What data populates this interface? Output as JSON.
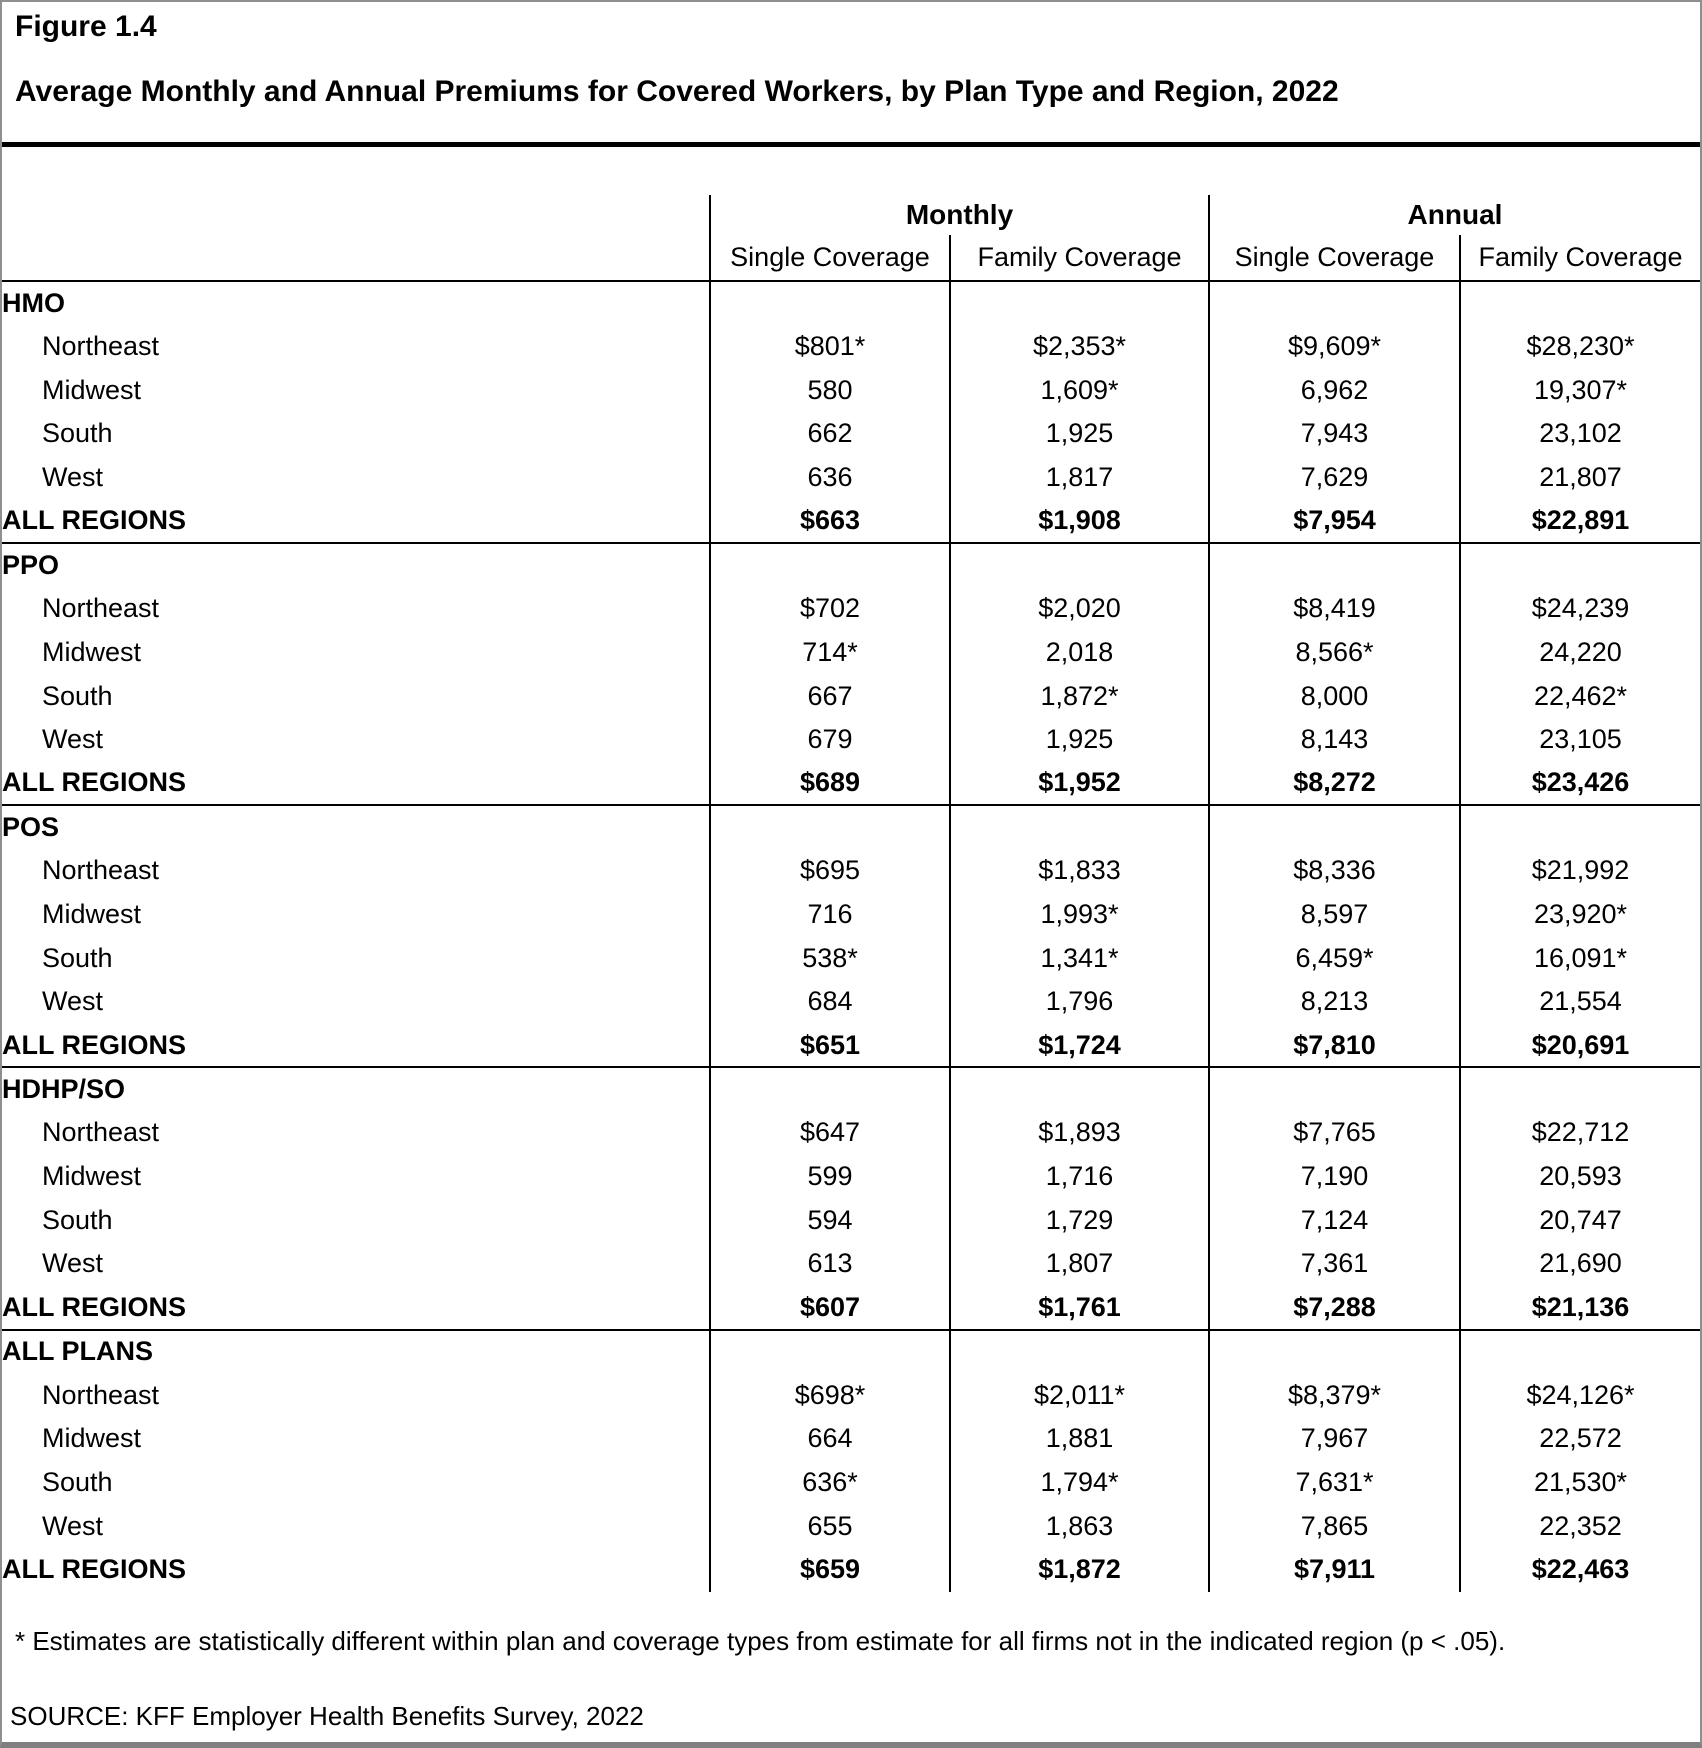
{
  "figure": {
    "label": "Figure 1.4",
    "title": "Average Monthly and Annual Premiums for Covered Workers, by Plan Type and Region, 2022"
  },
  "table": {
    "col_groups": [
      {
        "label": "Monthly"
      },
      {
        "label": "Annual"
      }
    ],
    "sub_headers": [
      "Single Coverage",
      "Family Coverage",
      "Single Coverage",
      "Family Coverage"
    ],
    "sections": [
      {
        "name": "HMO",
        "rows": [
          {
            "label": "Northeast",
            "indent": true,
            "bold": false,
            "values": [
              "$801*",
              "$2,353*",
              "$9,609*",
              "$28,230*"
            ]
          },
          {
            "label": "Midwest",
            "indent": true,
            "bold": false,
            "values": [
              "580",
              "1,609*",
              "6,962",
              "19,307*"
            ]
          },
          {
            "label": "South",
            "indent": true,
            "bold": false,
            "values": [
              "662",
              "1,925",
              "7,943",
              "23,102"
            ]
          },
          {
            "label": "West",
            "indent": true,
            "bold": false,
            "values": [
              "636",
              "1,817",
              "7,629",
              "21,807"
            ]
          },
          {
            "label": "ALL REGIONS",
            "indent": false,
            "bold": true,
            "values": [
              "$663",
              "$1,908",
              "$7,954",
              "$22,891"
            ]
          }
        ]
      },
      {
        "name": "PPO",
        "rows": [
          {
            "label": "Northeast",
            "indent": true,
            "bold": false,
            "values": [
              "$702",
              "$2,020",
              "$8,419",
              "$24,239"
            ]
          },
          {
            "label": "Midwest",
            "indent": true,
            "bold": false,
            "values": [
              "714*",
              "2,018",
              "8,566*",
              "24,220"
            ]
          },
          {
            "label": "South",
            "indent": true,
            "bold": false,
            "values": [
              "667",
              "1,872*",
              "8,000",
              "22,462*"
            ]
          },
          {
            "label": "West",
            "indent": true,
            "bold": false,
            "values": [
              "679",
              "1,925",
              "8,143",
              "23,105"
            ]
          },
          {
            "label": "ALL REGIONS",
            "indent": false,
            "bold": true,
            "values": [
              "$689",
              "$1,952",
              "$8,272",
              "$23,426"
            ]
          }
        ]
      },
      {
        "name": "POS",
        "rows": [
          {
            "label": "Northeast",
            "indent": true,
            "bold": false,
            "values": [
              "$695",
              "$1,833",
              "$8,336",
              "$21,992"
            ]
          },
          {
            "label": "Midwest",
            "indent": true,
            "bold": false,
            "values": [
              "716",
              "1,993*",
              "8,597",
              "23,920*"
            ]
          },
          {
            "label": "South",
            "indent": true,
            "bold": false,
            "values": [
              "538*",
              "1,341*",
              "6,459*",
              "16,091*"
            ]
          },
          {
            "label": "West",
            "indent": true,
            "bold": false,
            "values": [
              "684",
              "1,796",
              "8,213",
              "21,554"
            ]
          },
          {
            "label": "ALL REGIONS",
            "indent": false,
            "bold": true,
            "values": [
              "$651",
              "$1,724",
              "$7,810",
              "$20,691"
            ]
          }
        ]
      },
      {
        "name": "HDHP/SO",
        "rows": [
          {
            "label": "Northeast",
            "indent": true,
            "bold": false,
            "values": [
              "$647",
              "$1,893",
              "$7,765",
              "$22,712"
            ]
          },
          {
            "label": "Midwest",
            "indent": true,
            "bold": false,
            "values": [
              "599",
              "1,716",
              "7,190",
              "20,593"
            ]
          },
          {
            "label": "South",
            "indent": true,
            "bold": false,
            "values": [
              "594",
              "1,729",
              "7,124",
              "20,747"
            ]
          },
          {
            "label": "West",
            "indent": true,
            "bold": false,
            "values": [
              "613",
              "1,807",
              "7,361",
              "21,690"
            ]
          },
          {
            "label": "ALL REGIONS",
            "indent": false,
            "bold": true,
            "values": [
              "$607",
              "$1,761",
              "$7,288",
              "$21,136"
            ]
          }
        ]
      },
      {
        "name": "ALL PLANS",
        "rows": [
          {
            "label": "Northeast",
            "indent": true,
            "bold": false,
            "values": [
              "$698*",
              "$2,011*",
              "$8,379*",
              "$24,126*"
            ]
          },
          {
            "label": "Midwest",
            "indent": true,
            "bold": false,
            "values": [
              "664",
              "1,881",
              "7,967",
              "22,572"
            ]
          },
          {
            "label": "South",
            "indent": true,
            "bold": false,
            "values": [
              "636*",
              "1,794*",
              "7,631*",
              "21,530*"
            ]
          },
          {
            "label": "West",
            "indent": true,
            "bold": false,
            "values": [
              "655",
              "1,863",
              "7,865",
              "22,352"
            ]
          },
          {
            "label": "ALL REGIONS",
            "indent": false,
            "bold": true,
            "values": [
              "$659",
              "$1,872",
              "$7,911",
              "$22,463"
            ]
          }
        ]
      }
    ]
  },
  "footnote": "* Estimates are statistically different within plan and coverage types from estimate for all firms not in the indicated region (p < .05).",
  "source": "SOURCE: KFF Employer Health Benefits Survey, 2022"
}
